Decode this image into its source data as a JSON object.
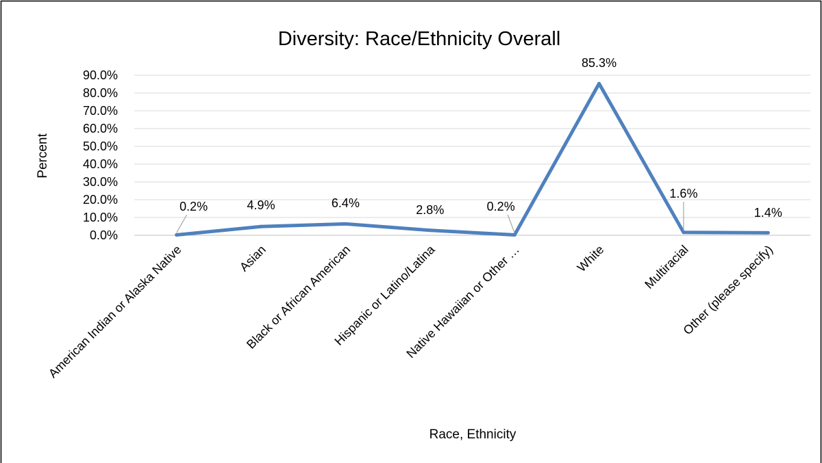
{
  "chart_data": {
    "type": "line",
    "title": "Diversity: Race/Ethnicity Overall",
    "xlabel": "Race, Ethnicity",
    "ylabel": "Percent",
    "ylim": [
      0,
      90
    ],
    "y_ticks": [
      "0.0%",
      "10.0%",
      "20.0%",
      "30.0%",
      "40.0%",
      "50.0%",
      "60.0%",
      "70.0%",
      "80.0%",
      "90.0%"
    ],
    "grid": true,
    "legend": "none",
    "categories": [
      "American Indian or Alaska Native",
      "Asian",
      "Black or African American",
      "Hispanic or Latino/Latina",
      "Native Hawaiian or Other …",
      "White",
      "Multiracial",
      "Other (please specify)"
    ],
    "series": [
      {
        "values": [
          0.2,
          4.9,
          6.4,
          2.8,
          0.2,
          85.3,
          1.6,
          1.4
        ],
        "data_labels": [
          "0.2%",
          "4.9%",
          "6.4%",
          "2.8%",
          "0.2%",
          "85.3%",
          "1.6%",
          "1.4%"
        ],
        "color": "#4f81bd"
      }
    ]
  }
}
